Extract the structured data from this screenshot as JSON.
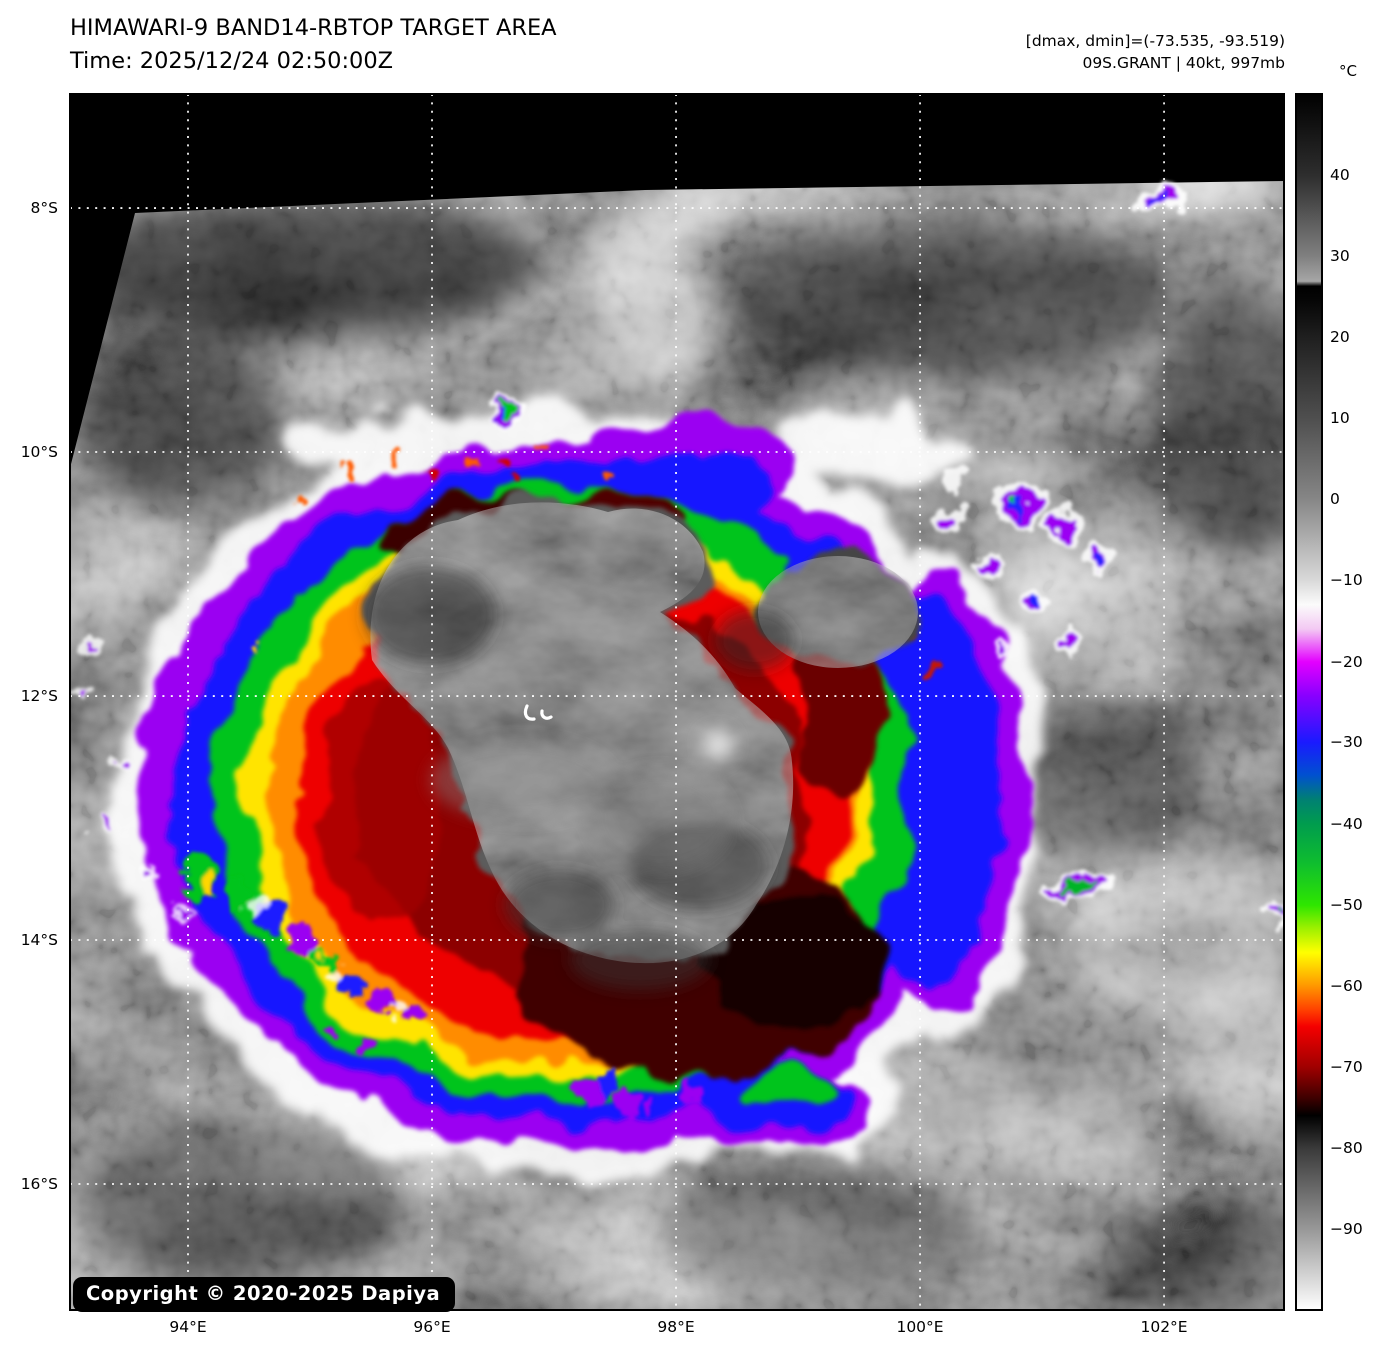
{
  "header": {
    "title": "HIMAWARI-9 BAND14-RBTOP TARGET AREA",
    "time": "Time: 2025/12/24 02:50:00Z",
    "annotation1": "[dmax, dmin]=(-73.535, -93.519)",
    "annotation2": "09S.GRANT | 40kt, 997mb"
  },
  "map": {
    "copyright": "Copyright © 2020-2025 Dapiya"
  },
  "axes": {
    "lat": [
      {
        "label": "8°S",
        "pct": 9.38
      },
      {
        "label": "10°S",
        "pct": 29.44
      },
      {
        "label": "12°S",
        "pct": 49.51
      },
      {
        "label": "14°S",
        "pct": 69.57
      },
      {
        "label": "16°S",
        "pct": 89.64
      }
    ],
    "lon": [
      {
        "label": "94°E",
        "pct": 9.72
      },
      {
        "label": "96°E",
        "pct": 29.82
      },
      {
        "label": "98°E",
        "pct": 49.92
      },
      {
        "label": "100°E",
        "pct": 70.02
      },
      {
        "label": "102°E",
        "pct": 90.12
      }
    ]
  },
  "colorbar": {
    "unit": "°C",
    "value_range": [
      50,
      -100
    ],
    "ticks": [
      {
        "label": "40",
        "pct": 6.67
      },
      {
        "label": "30",
        "pct": 13.33
      },
      {
        "label": "20",
        "pct": 20.0
      },
      {
        "label": "10",
        "pct": 26.67
      },
      {
        "label": "0",
        "pct": 33.33
      },
      {
        "label": "−10",
        "pct": 40.0
      },
      {
        "label": "−20",
        "pct": 46.67
      },
      {
        "label": "−30",
        "pct": 53.33
      },
      {
        "label": "−40",
        "pct": 60.0
      },
      {
        "label": "−50",
        "pct": 66.67
      },
      {
        "label": "−60",
        "pct": 73.33
      },
      {
        "label": "−70",
        "pct": 80.0
      },
      {
        "label": "−80",
        "pct": 86.67
      },
      {
        "label": "−90",
        "pct": 93.33
      }
    ],
    "gradient": [
      {
        "pct": 0,
        "color": "#000000"
      },
      {
        "pct": 6.7,
        "color": "#2e2e2e"
      },
      {
        "pct": 13.3,
        "color": "#7f7f7f"
      },
      {
        "pct": 15.4,
        "color": "#a6a6a6"
      },
      {
        "pct": 15.8,
        "color": "#000000"
      },
      {
        "pct": 17.0,
        "color": "#060606"
      },
      {
        "pct": 20,
        "color": "#1f1f1f"
      },
      {
        "pct": 26.7,
        "color": "#4f4f4f"
      },
      {
        "pct": 33.3,
        "color": "#868686"
      },
      {
        "pct": 40,
        "color": "#d9d9d9"
      },
      {
        "pct": 42,
        "color": "#fbfbfb"
      },
      {
        "pct": 44,
        "color": "#f3c9f3"
      },
      {
        "pct": 46.7,
        "color": "#e300ff"
      },
      {
        "pct": 49.5,
        "color": "#8800ff"
      },
      {
        "pct": 53.3,
        "color": "#1a1aff"
      },
      {
        "pct": 56,
        "color": "#0050d0"
      },
      {
        "pct": 58,
        "color": "#008073"
      },
      {
        "pct": 60,
        "color": "#009c4e"
      },
      {
        "pct": 63.3,
        "color": "#0fbe2e"
      },
      {
        "pct": 66.7,
        "color": "#2ee600"
      },
      {
        "pct": 68.6,
        "color": "#9df000"
      },
      {
        "pct": 70.6,
        "color": "#ffff00"
      },
      {
        "pct": 73.3,
        "color": "#ff9900"
      },
      {
        "pct": 75.4,
        "color": "#ff3d00"
      },
      {
        "pct": 76.7,
        "color": "#f40000"
      },
      {
        "pct": 80,
        "color": "#a00000"
      },
      {
        "pct": 82.6,
        "color": "#3d0000"
      },
      {
        "pct": 84,
        "color": "#000000"
      },
      {
        "pct": 86.7,
        "color": "#3a3a3a"
      },
      {
        "pct": 93.3,
        "color": "#979797"
      },
      {
        "pct": 100,
        "color": "#ffffff"
      }
    ]
  }
}
